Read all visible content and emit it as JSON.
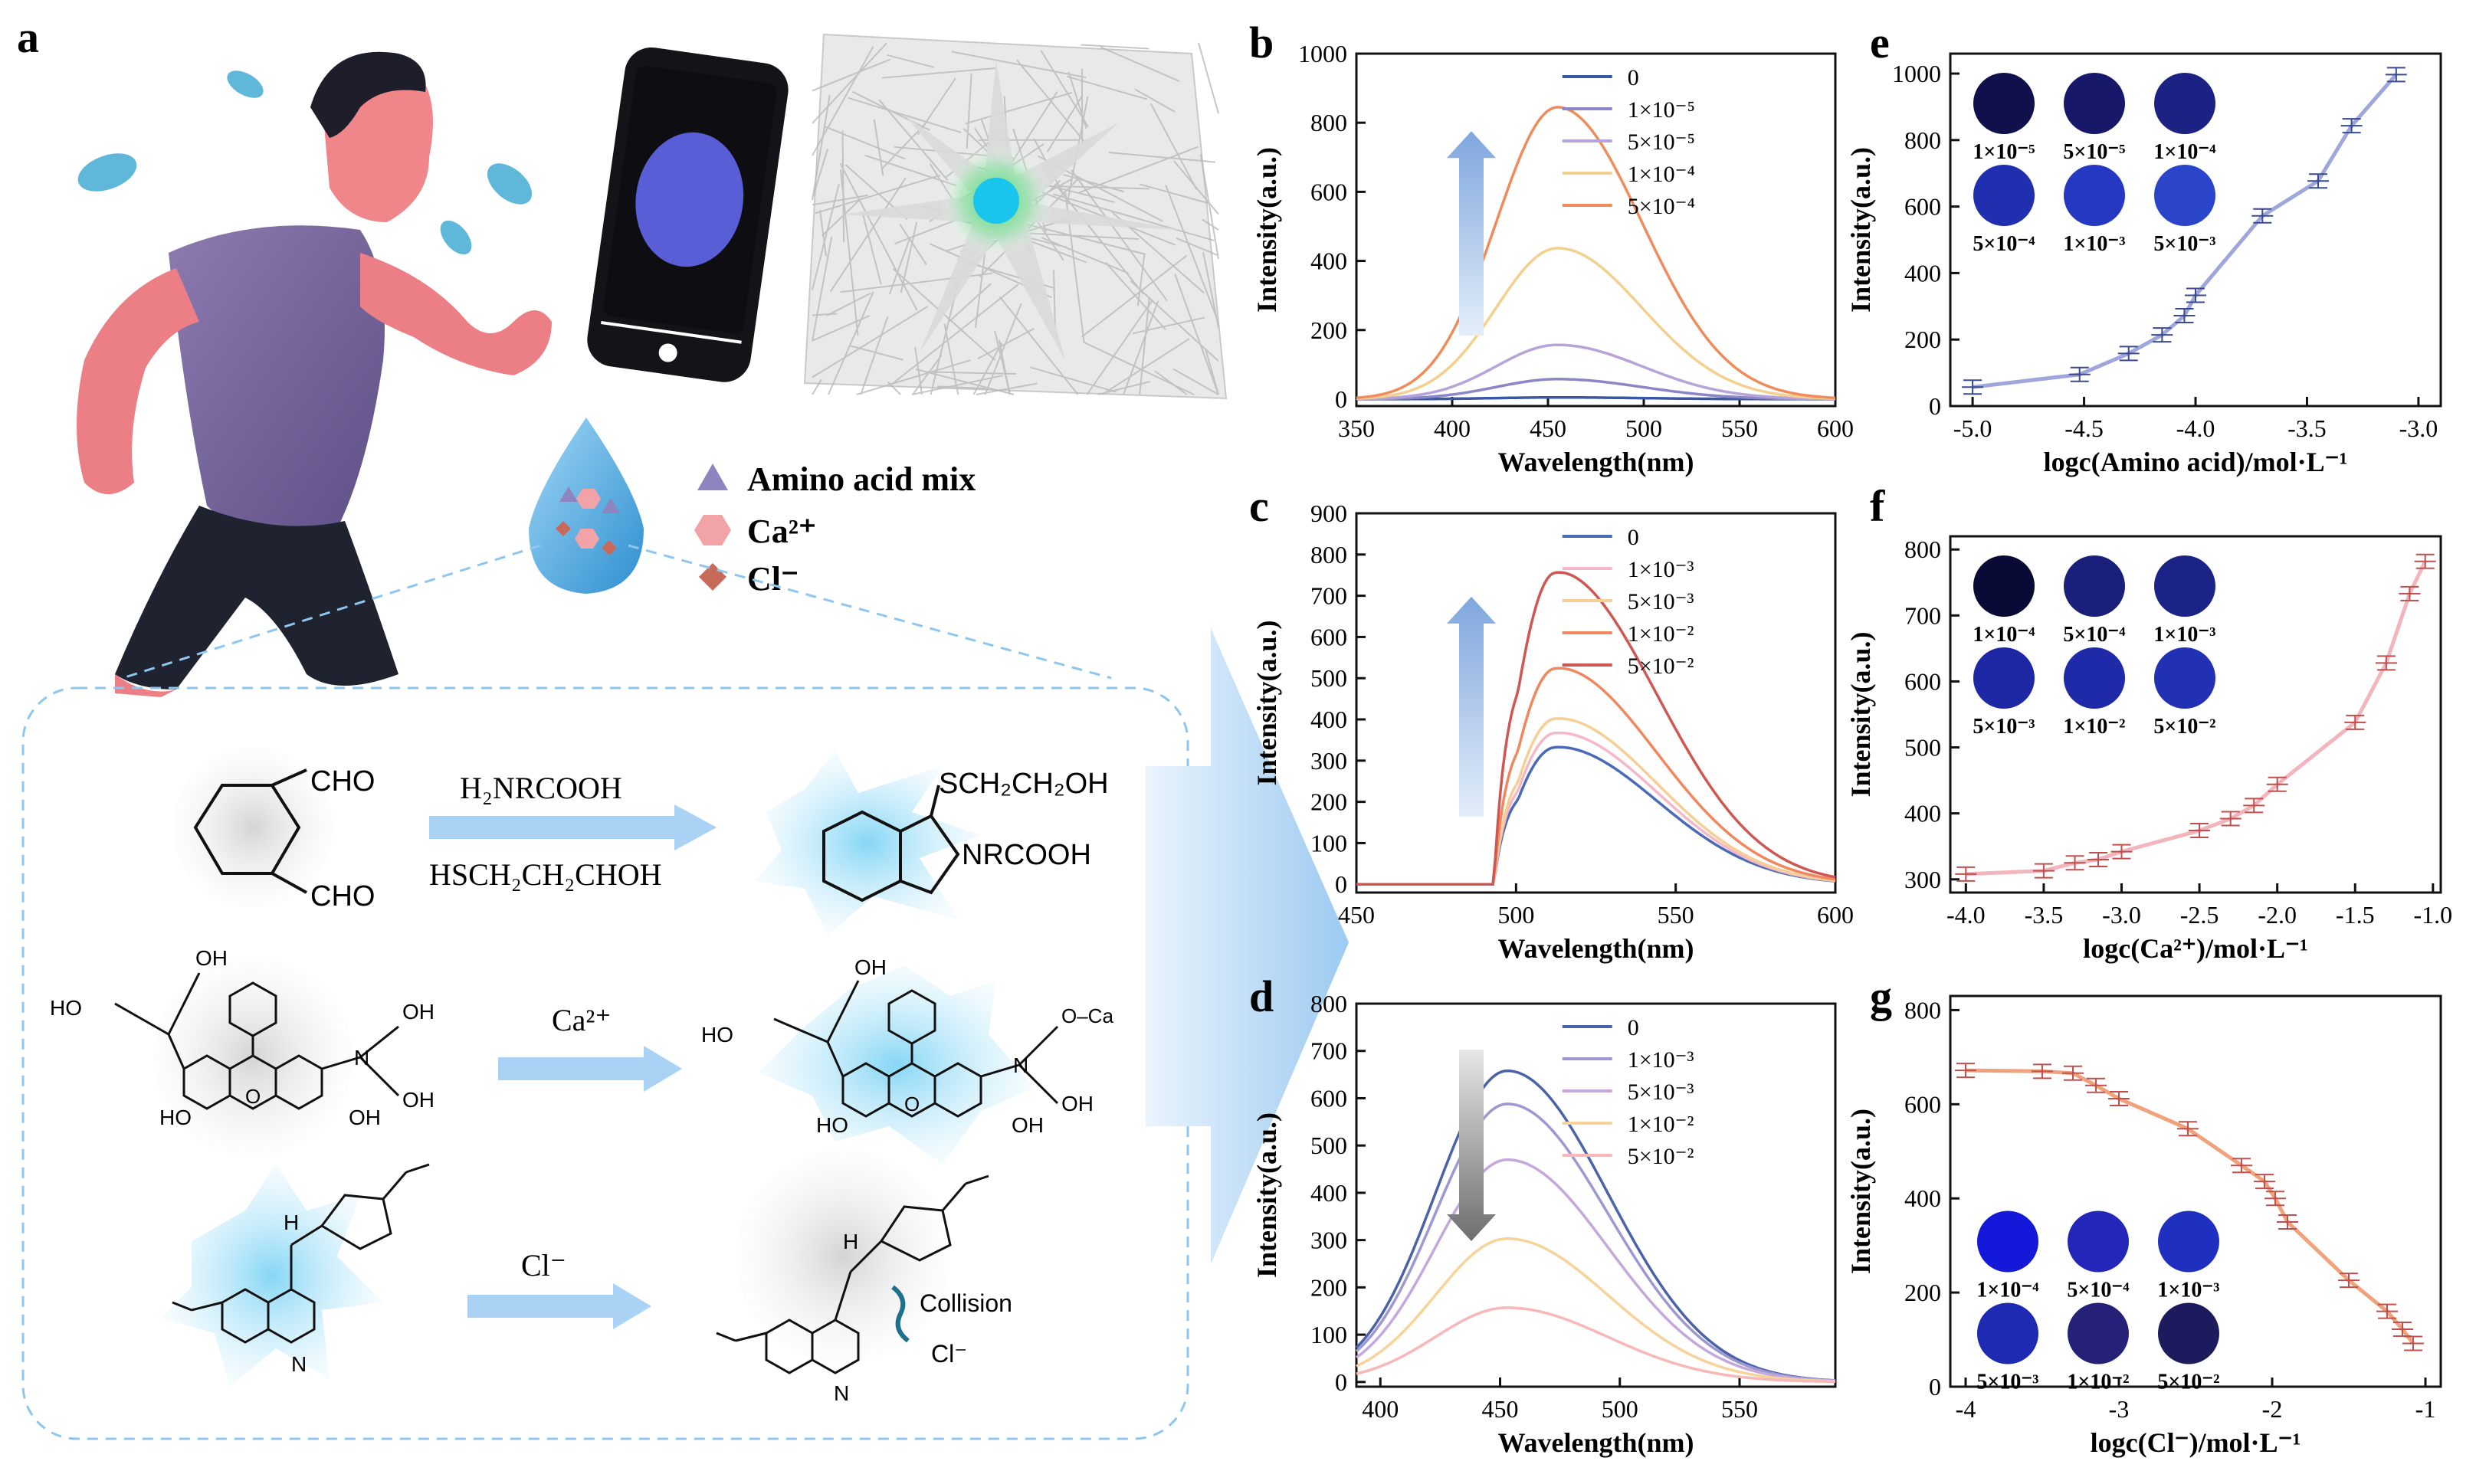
{
  "panel_labels": {
    "a": "a",
    "b": "b",
    "c": "c",
    "d": "d",
    "e": "e",
    "f": "f",
    "g": "g"
  },
  "legend_a": {
    "amino": "Amino acid mix",
    "ca": "Ca²⁺",
    "cl": "Cl⁻",
    "colors": {
      "amino": "#8e85c0",
      "ca": "#f2a3a8",
      "cl": "#c86a5a"
    }
  },
  "reactions": {
    "r1_reagent_top": "H₂NRCOOH",
    "r1_reagent_bottom": "HSCH₂CH₂CHOH",
    "r1_cho_top": "CHO",
    "r1_cho_bottom": "CHO",
    "r1_product_top": "SCH₂CH₂OH",
    "r1_product_right": "NRCOOH",
    "r2_reagent": "Ca²⁺",
    "r2_ca_label": "O–Ca",
    "r3_reagent": "Cl⁻",
    "r3_collision": "Collision",
    "r3_cl_label": "Cl⁻",
    "oh": "OH",
    "ho": "HO",
    "n": "N",
    "o": "O",
    "h": "H"
  },
  "chart_data": [
    {
      "id": "b",
      "type": "line",
      "xlabel": "Wavelength(nm)",
      "ylabel": "Intensity(a.u.)",
      "xlim": [
        350,
        600
      ],
      "ylim": [
        -20,
        1000
      ],
      "xticks": [
        350,
        400,
        450,
        500,
        550,
        600
      ],
      "yticks": [
        0,
        200,
        400,
        600,
        800,
        1000
      ],
      "peak_x": 455,
      "arrow": "up",
      "series": [
        {
          "name": "0",
          "color": "#3a56a6",
          "peak": 5
        },
        {
          "name": "1×10⁻⁵",
          "color": "#8a86c8",
          "peak": 58
        },
        {
          "name": "5×10⁻⁵",
          "color": "#b7a3d8",
          "peak": 157
        },
        {
          "name": "1×10⁻⁴",
          "color": "#f3d08e",
          "peak": 437
        },
        {
          "name": "5×10⁻⁴",
          "color": "#f08c5c",
          "peak": 845
        }
      ]
    },
    {
      "id": "c",
      "type": "line",
      "xlabel": "Wavelength(nm)",
      "ylabel": "Intensity(a.u.)",
      "xlim": [
        450,
        600
      ],
      "ylim": [
        -20,
        900
      ],
      "xticks": [
        450,
        500,
        550,
        600
      ],
      "yticks": [
        0,
        100,
        200,
        300,
        400,
        500,
        600,
        700,
        800,
        900
      ],
      "peak_x": 512,
      "arrow": "up",
      "series": [
        {
          "name": "0",
          "color": "#4a6ab8",
          "peak": 335
        },
        {
          "name": "1×10⁻³",
          "color": "#f4b8c8",
          "peak": 370
        },
        {
          "name": "5×10⁻³",
          "color": "#f6cf96",
          "peak": 405
        },
        {
          "name": "1×10⁻²",
          "color": "#f0875f",
          "peak": 528
        },
        {
          "name": "5×10⁻²",
          "color": "#cf5753",
          "peak": 762
        }
      ]
    },
    {
      "id": "d",
      "type": "line",
      "xlabel": "Wavelength(nm)",
      "ylabel": "Intensity(a.u.)",
      "xlim": [
        390,
        590
      ],
      "ylim": [
        -10,
        800
      ],
      "xticks": [
        400,
        450,
        500,
        550
      ],
      "yticks": [
        0,
        100,
        200,
        300,
        400,
        500,
        600,
        700,
        800
      ],
      "peak_x": 453,
      "arrow": "down",
      "series": [
        {
          "name": "0",
          "color": "#4a63a8",
          "peak": 658
        },
        {
          "name": "1×10⁻³",
          "color": "#9d98d2",
          "peak": 588
        },
        {
          "name": "5×10⁻³",
          "color": "#c4a8dc",
          "peak": 470
        },
        {
          "name": "1×10⁻²",
          "color": "#f6d39a",
          "peak": 303
        },
        {
          "name": "5×10⁻²",
          "color": "#f6b8b8",
          "peak": 157
        }
      ]
    },
    {
      "id": "e",
      "type": "scatter",
      "xlabel": "logc(Amino acid)/mol·L⁻¹",
      "ylabel": "Intensity(a.u.)",
      "xlim": [
        -5.1,
        -2.9
      ],
      "ylim": [
        0,
        1060
      ],
      "xticks": [
        -5.0,
        -4.5,
        -4.0,
        -3.5,
        -3.0
      ],
      "yticks": [
        0,
        200,
        400,
        600,
        800,
        1000
      ],
      "color": "#9fa6dc",
      "errcolor": "#3a4a90",
      "x": [
        -5.0,
        -4.52,
        -4.3,
        -4.15,
        -4.05,
        -4.0,
        -3.7,
        -3.45,
        -3.3,
        -3.1
      ],
      "y": [
        57,
        95,
        158,
        214,
        272,
        333,
        572,
        677,
        843,
        997
      ],
      "dish_colors": [
        "#10104c",
        "#17186a",
        "#1c2184",
        "#1f2fb0",
        "#2438c2",
        "#2a44ca"
      ],
      "dish_labels": [
        "1×10⁻⁵",
        "5×10⁻⁵",
        "1×10⁻⁴",
        "5×10⁻⁴",
        "1×10⁻³",
        "5×10⁻³"
      ]
    },
    {
      "id": "f",
      "type": "scatter",
      "xlabel": "logc(Ca²⁺)/mol·L⁻¹",
      "ylabel": "Intensity(a.u.)",
      "xlim": [
        -4.1,
        -0.95
      ],
      "ylim": [
        280,
        820
      ],
      "xticks": [
        -4.0,
        -3.5,
        -3.0,
        -2.5,
        -2.0,
        -1.5,
        -1.0
      ],
      "yticks": [
        300,
        400,
        500,
        600,
        700,
        800
      ],
      "color": "#f3b5bd",
      "errcolor": "#c0504d",
      "x": [
        -4.0,
        -3.5,
        -3.3,
        -3.15,
        -3.0,
        -2.5,
        -2.3,
        -2.15,
        -2.0,
        -1.5,
        -1.3,
        -1.15,
        -1.05
      ],
      "y": [
        308,
        313,
        325,
        330,
        342,
        374,
        392,
        412,
        444,
        538,
        628,
        733,
        782
      ],
      "dish_colors": [
        "#0a0a36",
        "#1a1f7a",
        "#1c2386",
        "#1e28a4",
        "#1f2aa8",
        "#2230b4"
      ],
      "dish_labels": [
        "1×10⁻⁴",
        "5×10⁻⁴",
        "1×10⁻³",
        "5×10⁻³",
        "1×10⁻²",
        "5×10⁻²"
      ]
    },
    {
      "id": "g",
      "type": "scatter",
      "xlabel": "logc(Cl⁻)/mol·L⁻¹",
      "ylabel": "Intensity(a.u.)",
      "xlim": [
        -4.1,
        -0.9
      ],
      "ylim": [
        0,
        830
      ],
      "xticks": [
        -4,
        -3,
        -2,
        -1
      ],
      "yticks": [
        0,
        200,
        400,
        600,
        800
      ],
      "color": "#f0a27c",
      "errcolor": "#c0504d",
      "x": [
        -4.0,
        -3.5,
        -3.3,
        -3.15,
        -3.0,
        -2.55,
        -2.2,
        -2.05,
        -1.98,
        -1.9,
        -1.5,
        -1.25,
        -1.15,
        -1.08
      ],
      "y": [
        672,
        670,
        666,
        640,
        612,
        548,
        470,
        436,
        400,
        350,
        226,
        160,
        122,
        92
      ],
      "dish_colors": [
        "#1418d8",
        "#2326b8",
        "#1f30c0",
        "#1e2ab2",
        "#252078",
        "#1d1a5e"
      ],
      "dish_labels": [
        "1×10⁻⁴",
        "5×10⁻⁴",
        "1×10⁻³",
        "5×10⁻³",
        "1×10⁻²",
        "5×10⁻²"
      ]
    }
  ]
}
